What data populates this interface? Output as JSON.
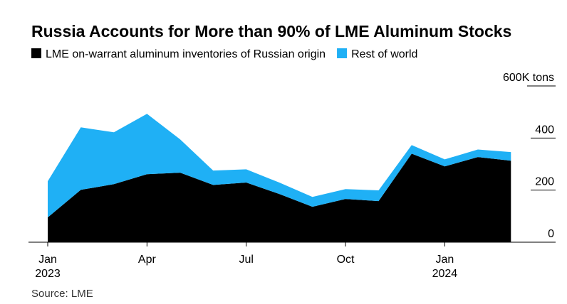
{
  "chart_data": {
    "type": "area",
    "stacked": true,
    "title": "Russia Accounts for More than 90% of LME Aluminum Stocks",
    "source": "Source: LME",
    "categories": [
      "Jan 2023",
      null,
      null,
      "Apr",
      null,
      null,
      "Jul",
      null,
      null,
      "Oct",
      null,
      null,
      "Jan 2024",
      null,
      null
    ],
    "series": [
      {
        "name": "LME on-warrant aluminum inventories of Russian origin",
        "color": "#000000",
        "values": [
          95,
          201,
          223,
          261,
          267,
          220,
          229,
          185,
          136,
          166,
          158,
          340,
          291,
          327,
          313
        ]
      },
      {
        "name": "Rest of world",
        "color": "#1fb0f5",
        "values": [
          139,
          240,
          199,
          232,
          128,
          55,
          51,
          44,
          38,
          38,
          41,
          33,
          27,
          29,
          33
        ]
      }
    ],
    "ylim": [
      0,
      600
    ],
    "yticks": [
      0,
      200,
      400,
      {
        "value": 600,
        "label": "600K tons"
      }
    ],
    "grid": true
  }
}
